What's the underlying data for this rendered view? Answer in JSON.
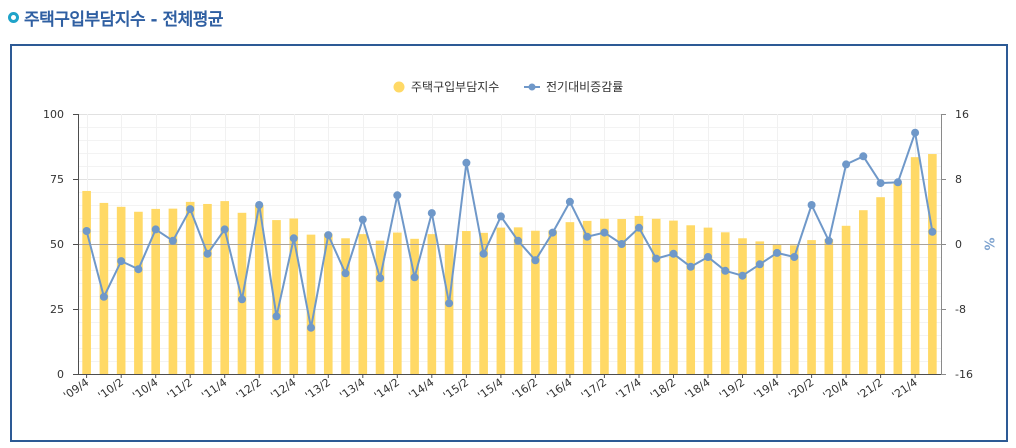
{
  "header": {
    "title_icon": "circle-bullet-icon"
  },
  "colors": {
    "title": "#2f5fa2",
    "title_icon": "#1fa3c9",
    "box_border": "#2d5a95",
    "bar": "#ffd966",
    "line": "#6f98c9",
    "axis_unit": "#7ea3cf"
  },
  "chart_data": {
    "type": "bar",
    "title": "주택구입부담지수 - 전체평균",
    "legend": "top-center",
    "grid": true,
    "categories": [
      "'09/4",
      "",
      "'10/2",
      "",
      "'10/4",
      "",
      "'11/2",
      "",
      "'11/4",
      "",
      "'12/2",
      "",
      "'12/4",
      "",
      "'13/2",
      "",
      "'13/4",
      "",
      "'14/2",
      "",
      "'14/4",
      "",
      "'15/2",
      "",
      "'15/4",
      "",
      "'16/2",
      "",
      "'16/4",
      "",
      "'17/2",
      "",
      "'17/4",
      "",
      "'18/2",
      "",
      "'18/4",
      "",
      "'19/2",
      "",
      "'19/4",
      "",
      "'20/2",
      "",
      "'20/4",
      "",
      "'21/2",
      "",
      "'21/4",
      ""
    ],
    "series": [
      {
        "name": "주택구입부담지수",
        "type": "bar",
        "axis": "left",
        "values": [
          70.4,
          65.8,
          64.3,
          62.4,
          63.5,
          63.6,
          66.2,
          65.4,
          66.5,
          62.0,
          65.0,
          59.2,
          59.8,
          53.6,
          54.0,
          52.2,
          53.8,
          51.3,
          54.4,
          52.0,
          53.8,
          50.0,
          55.0,
          54.3,
          56.3,
          56.4,
          55.1,
          55.2,
          58.4,
          58.9,
          59.7,
          59.6,
          60.8,
          59.7,
          59.0,
          57.2,
          56.3,
          54.5,
          52.2,
          51.0,
          49.6,
          49.5,
          51.5,
          51.9,
          57.0,
          63.0,
          68.0,
          73.4,
          83.4,
          84.6
        ]
      },
      {
        "name": "전기대비증감률",
        "type": "line",
        "axis": "right",
        "values": [
          1.6,
          -6.5,
          -2.1,
          -3.1,
          1.8,
          0.4,
          4.3,
          -1.2,
          1.8,
          -6.8,
          4.8,
          -8.9,
          0.7,
          -10.3,
          1.1,
          -3.6,
          3.0,
          -4.2,
          6.0,
          -4.1,
          3.8,
          -7.3,
          10.0,
          -1.2,
          3.4,
          0.4,
          -2.0,
          1.4,
          5.2,
          0.9,
          1.4,
          0.0,
          2.0,
          -1.8,
          -1.2,
          -2.8,
          -1.6,
          -3.3,
          -3.9,
          -2.5,
          -1.1,
          -1.6,
          4.8,
          0.4,
          9.8,
          10.8,
          7.5,
          7.6,
          13.7,
          1.5
        ]
      }
    ],
    "ylim": [
      0,
      100
    ],
    "y_ticks": [
      0,
      25,
      50,
      75,
      100
    ],
    "y2lim": [
      -16,
      16
    ],
    "y2_ticks": [
      -16,
      -8,
      0,
      8,
      16
    ],
    "y2label": "%"
  }
}
